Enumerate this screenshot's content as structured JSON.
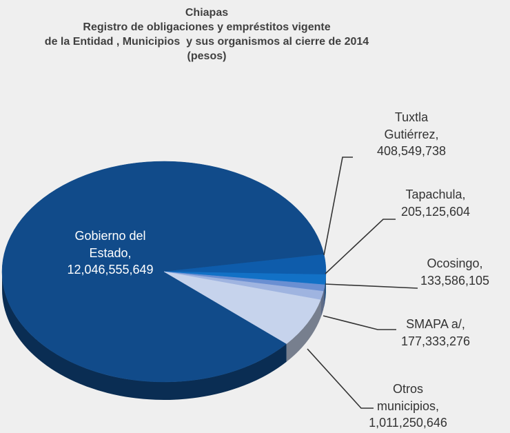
{
  "chart_data": {
    "type": "pie",
    "title": [
      "Chiapas",
      "Registro de obligaciones y empréstitos vigente",
      "de la Entidad , Municipios  y sus organismos al cierre de 2014",
      "(pesos)"
    ],
    "categories": [
      "Gobierno del Estado,",
      "Tuxtla Gutiérrez,",
      "Tapachula,",
      "Ocosingo,",
      "SMAPA a/,",
      "Otros municipios,"
    ],
    "values": [
      12046555649,
      408549738,
      205125604,
      133586105,
      177333276,
      1011250646
    ],
    "value_labels": [
      "12,046,555,649",
      "408,549,738",
      "205,125,604",
      "133,586,105",
      "177,333,276",
      "1,011,250,646"
    ],
    "colors": [
      "#114b8a",
      "#0e5cab",
      "#1271c6",
      "#6a8fd2",
      "#9fb4e0",
      "#c6d3ec"
    ]
  }
}
